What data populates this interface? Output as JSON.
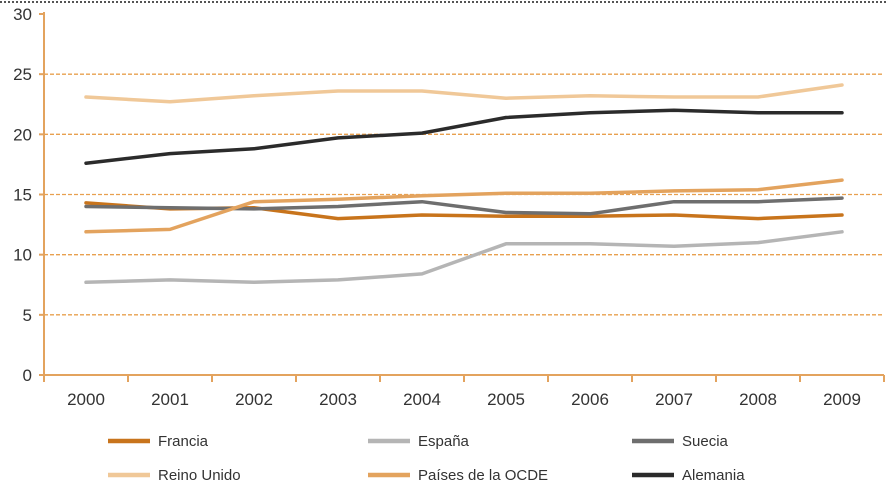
{
  "chart_data": {
    "type": "line",
    "categories": [
      "2000",
      "2001",
      "2002",
      "2003",
      "2004",
      "2005",
      "2006",
      "2007",
      "2008",
      "2009"
    ],
    "ylim": [
      0,
      30
    ],
    "yticks": [
      0,
      5,
      10,
      15,
      20,
      25,
      30
    ],
    "ytick_labels": [
      "0",
      "5",
      "10",
      "15",
      "20",
      "25",
      "30"
    ],
    "grid": "horizontal dashed",
    "legend_position": "bottom",
    "series": [
      {
        "name": "Francia",
        "color": "#c8741c",
        "values": [
          14.3,
          13.8,
          13.9,
          13.0,
          13.3,
          13.2,
          13.2,
          13.3,
          13.0,
          13.3
        ]
      },
      {
        "name": "España",
        "color": "#b5b5b5",
        "values": [
          7.7,
          7.9,
          7.7,
          7.9,
          8.4,
          10.9,
          10.9,
          10.7,
          11.0,
          11.9
        ]
      },
      {
        "name": "Suecia",
        "color": "#6e6e6e",
        "values": [
          14.0,
          13.9,
          13.8,
          14.0,
          14.4,
          13.5,
          13.4,
          14.4,
          14.4,
          14.7
        ]
      },
      {
        "name": "Reino Unido",
        "color": "#f0c898",
        "values": [
          23.1,
          22.7,
          23.2,
          23.6,
          23.6,
          23.0,
          23.2,
          23.1,
          23.1,
          24.1
        ]
      },
      {
        "name": "Países de la OCDE",
        "color": "#e3a35e",
        "values": [
          11.9,
          12.1,
          14.4,
          14.6,
          14.9,
          15.1,
          15.1,
          15.3,
          15.4,
          16.2
        ]
      },
      {
        "name": "Alemania",
        "color": "#2b2b2b",
        "values": [
          17.6,
          18.4,
          18.8,
          19.7,
          20.1,
          21.4,
          21.8,
          22.0,
          21.8,
          21.8
        ]
      }
    ]
  },
  "colors": {
    "axis": "#e3a35e",
    "grid": "#e8a04f",
    "top_border": "#555555"
  }
}
